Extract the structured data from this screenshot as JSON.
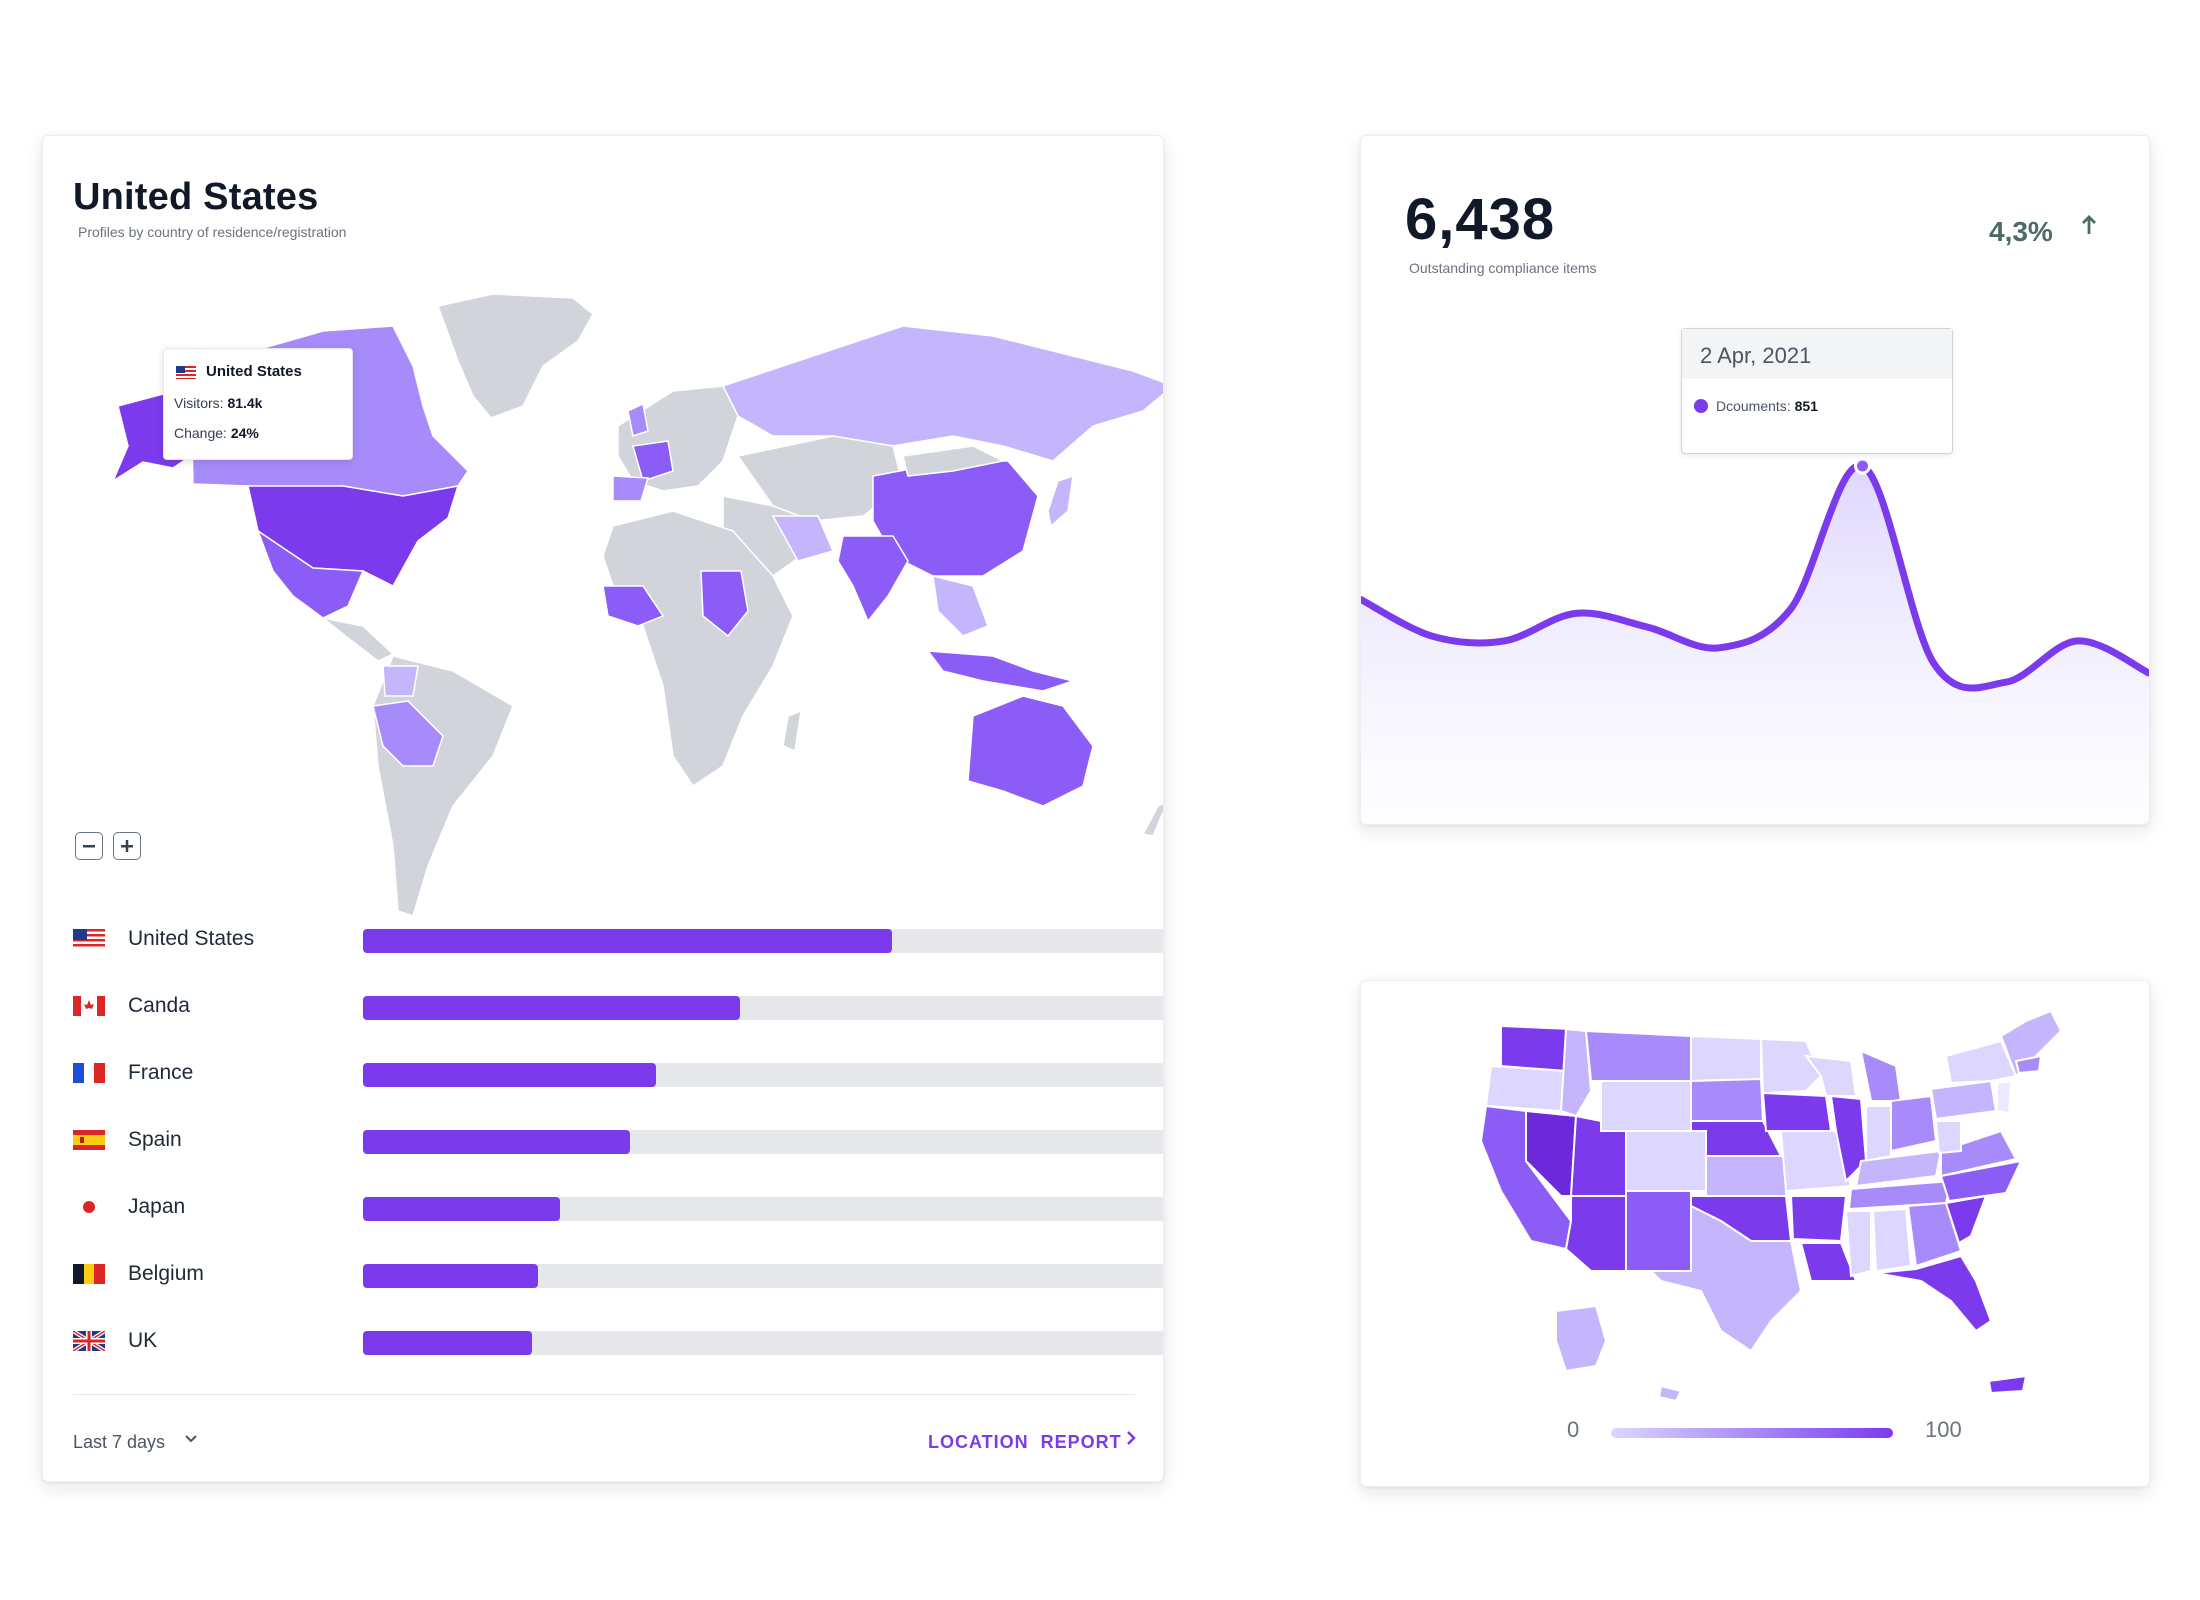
{
  "location_card": {
    "title": "United States",
    "subtitle": "Profiles by country of residence/registration",
    "map_tooltip": {
      "country": "United States",
      "visitors_label": "Visitors:",
      "visitors_value": "81.4k",
      "change_label": "Change:",
      "change_value": "24%"
    },
    "zoom": {
      "out_icon": "minus-icon",
      "in_icon": "plus-icon"
    },
    "countries": [
      {
        "name": "United States",
        "share": 0.66
      },
      {
        "name": "Canda",
        "share": 0.47
      },
      {
        "name": "France",
        "share": 0.365
      },
      {
        "name": "Spain",
        "share": 0.333
      },
      {
        "name": "Japan",
        "share": 0.246
      },
      {
        "name": "Belgium",
        "share": 0.218
      },
      {
        "name": "UK",
        "share": 0.211
      }
    ],
    "period": "Last 7 days",
    "report_link": "LOCATION  REPORT"
  },
  "stat_card": {
    "value": "6,438",
    "label": "Outstanding compliance items",
    "change": "4,3%",
    "change_direction_icon": "arrow-up-icon",
    "tooltip": {
      "date": "2 Apr, 2021",
      "series_label": "Dcouments:",
      "series_value": "851"
    },
    "chart_data": {
      "type": "area",
      "series": [
        {
          "values": [
            560,
            480,
            470,
            530,
            500,
            455,
            540,
            851,
            420,
            380,
            470,
            400
          ]
        }
      ],
      "highlight": {
        "index": 7,
        "value": 851
      }
    }
  },
  "us_map_card": {
    "legend_min": "0",
    "legend_max": "100"
  },
  "colors": {
    "accent": "#7c3aed",
    "map_light": "#c4b5fd",
    "map_mid": "#a78bfa",
    "map_gray": "#d1d5db",
    "track": "#e5e7eb"
  }
}
